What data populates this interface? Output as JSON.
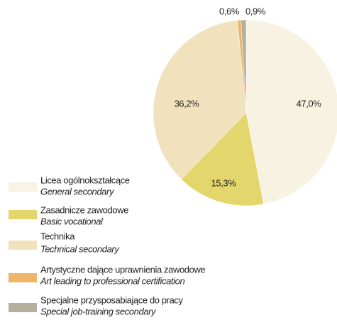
{
  "chart_data": {
    "type": "pie",
    "categories": [
      "Licea ogólnokształcące",
      "Zasadnicze zawodowe",
      "Technika",
      "Artystyczne dające uprawnienia zawodowe",
      "Specjalne przysposabiające do pracy"
    ],
    "subtitles": [
      "General secondary",
      "Basic vocational",
      "Technical secondary",
      "Art leading to professional certification",
      "Special job-training secondary"
    ],
    "values": [
      47.0,
      15.3,
      36.2,
      0.6,
      0.9
    ],
    "value_labels": [
      "47,0%",
      "15,3%",
      "36,2%",
      "0,6%",
      "0,9%"
    ],
    "colors": [
      "#f8f2e2",
      "#e3d66c",
      "#f1e1bd",
      "#eeb468",
      "#b4b0a0"
    ]
  }
}
